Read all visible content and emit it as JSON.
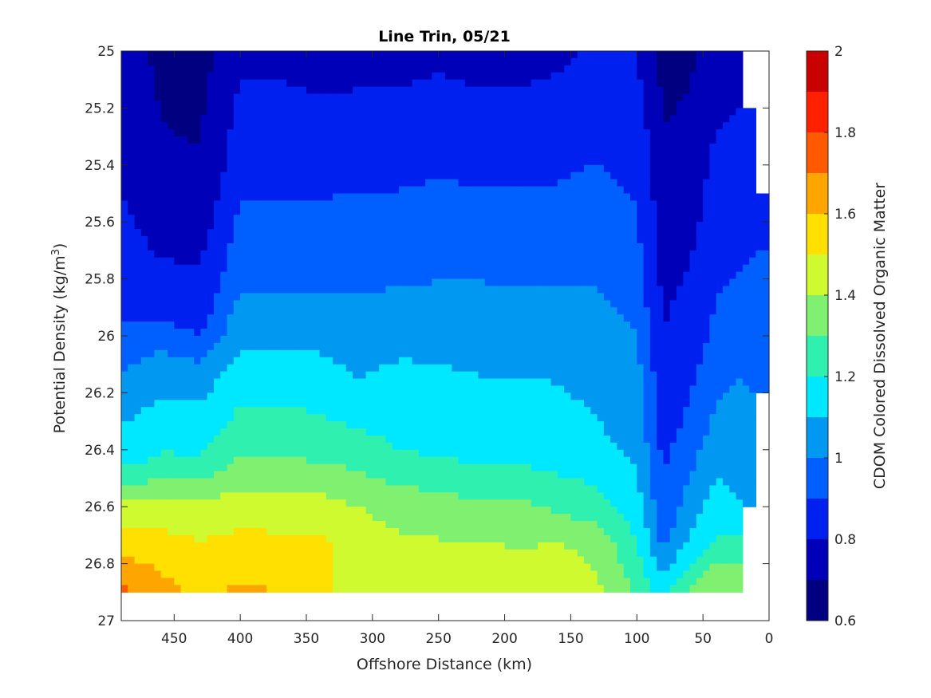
{
  "chart_data": {
    "type": "heatmap",
    "subtype": "filled-contour",
    "title": "Line Trin, 05/21",
    "xlabel": "Offshore Distance (km)",
    "ylabel": "Potential Density (kg/m",
    "ylabel_superscript": "3",
    "ylabel_close": ")",
    "colorbar_label": "CDOM Colored Dissolved Organic Matter",
    "x_axis": {
      "min": 0,
      "max": 490,
      "reversed": true,
      "ticks": [
        450,
        400,
        350,
        300,
        250,
        200,
        150,
        100,
        50,
        0
      ]
    },
    "y_axis": {
      "min": 25,
      "max": 27,
      "reversed": true,
      "ticks": [
        "25",
        "25.2",
        "25.4",
        "25.6",
        "25.8",
        "26",
        "26.2",
        "26.4",
        "26.6",
        "26.8",
        "27"
      ]
    },
    "colorbar": {
      "min": 0.6,
      "max": 2.0,
      "ticks": [
        "0.6",
        "0.8",
        "1",
        "1.2",
        "1.4",
        "1.6",
        "1.8",
        "2"
      ],
      "levels": [
        0.6,
        0.7,
        0.8,
        0.9,
        1.0,
        1.1,
        1.2,
        1.3,
        1.4,
        1.5,
        1.6,
        1.7,
        1.8,
        1.9,
        2.0
      ],
      "colors": [
        "#000080",
        "#0000B8",
        "#0020F0",
        "#0060FF",
        "#0098F0",
        "#00E8FF",
        "#30F0B0",
        "#80F070",
        "#D0FA30",
        "#FFE000",
        "#FFA500",
        "#FF5A00",
        "#FF2000",
        "#C80000"
      ]
    },
    "distances_km": [
      490,
      460,
      430,
      400,
      370,
      340,
      310,
      280,
      250,
      220,
      190,
      160,
      130,
      100,
      80,
      60,
      40,
      20,
      10
    ],
    "profiles": [
      [
        25.0,
        0.74,
        25.4,
        0.78,
        25.9,
        0.88,
        26.1,
        0.98,
        26.45,
        1.18,
        26.6,
        1.42,
        26.75,
        1.58,
        26.9,
        1.72
      ],
      [
        25.0,
        0.68,
        25.5,
        0.72,
        25.9,
        0.86,
        26.1,
        1.04,
        26.45,
        1.22,
        26.6,
        1.44,
        26.75,
        1.55,
        26.9,
        1.64
      ],
      [
        25.0,
        0.66,
        25.5,
        0.72,
        25.95,
        0.86,
        26.15,
        1.05,
        26.45,
        1.22,
        26.6,
        1.43,
        26.75,
        1.52,
        26.9,
        1.57
      ],
      [
        25.0,
        0.78,
        25.4,
        0.86,
        25.8,
        0.98,
        26.0,
        1.08,
        26.4,
        1.28,
        26.6,
        1.45,
        26.75,
        1.54,
        26.9,
        1.62
      ],
      [
        25.0,
        0.78,
        25.35,
        0.85,
        25.8,
        0.98,
        26.1,
        1.12,
        26.4,
        1.28,
        26.6,
        1.44,
        26.75,
        1.54,
        26.9,
        1.6
      ],
      [
        25.0,
        0.76,
        25.35,
        0.85,
        25.8,
        0.98,
        26.1,
        1.12,
        26.4,
        1.26,
        26.6,
        1.44,
        26.75,
        1.53,
        26.9,
        1.52
      ],
      [
        25.0,
        0.76,
        25.3,
        0.85,
        25.8,
        0.98,
        26.15,
        1.1,
        26.4,
        1.24,
        26.6,
        1.4,
        26.75,
        1.45,
        26.9,
        1.44
      ],
      [
        25.0,
        0.76,
        25.3,
        0.85,
        25.75,
        0.97,
        26.05,
        1.09,
        26.4,
        1.2,
        26.6,
        1.36,
        26.75,
        1.43,
        26.9,
        1.44
      ],
      [
        25.0,
        0.78,
        25.3,
        0.86,
        25.75,
        0.98,
        26.1,
        1.1,
        26.4,
        1.18,
        26.6,
        1.34,
        26.75,
        1.42,
        26.9,
        1.46
      ],
      [
        25.0,
        0.76,
        25.3,
        0.85,
        25.75,
        0.98,
        26.05,
        1.08,
        26.4,
        1.16,
        26.6,
        1.32,
        26.75,
        1.42,
        26.9,
        1.44
      ],
      [
        25.0,
        0.76,
        25.3,
        0.85,
        25.75,
        0.97,
        26.05,
        1.08,
        26.4,
        1.16,
        26.6,
        1.32,
        26.75,
        1.4,
        26.9,
        1.43
      ],
      [
        25.0,
        0.78,
        25.3,
        0.86,
        25.75,
        0.97,
        26.05,
        1.08,
        26.4,
        1.14,
        26.6,
        1.28,
        26.75,
        1.42,
        26.9,
        1.44
      ],
      [
        25.0,
        0.82,
        25.3,
        0.88,
        25.75,
        0.98,
        26.05,
        1.06,
        26.4,
        1.12,
        26.6,
        1.24,
        26.75,
        1.38,
        26.9,
        1.42
      ],
      [
        25.0,
        0.8,
        25.3,
        0.86,
        25.8,
        0.94,
        26.05,
        1.02,
        26.4,
        1.08,
        26.6,
        1.14,
        26.75,
        1.22,
        26.9,
        1.28
      ],
      [
        25.0,
        0.66,
        25.5,
        0.74,
        26.0,
        0.8,
        26.3,
        0.85,
        26.5,
        0.9,
        26.7,
        0.96,
        26.8,
        1.05,
        26.9,
        1.15
      ],
      [
        25.0,
        0.68,
        25.5,
        0.75,
        26.0,
        0.85,
        26.3,
        0.92,
        26.5,
        1.0,
        26.7,
        1.1,
        26.8,
        1.2,
        26.9,
        1.34
      ],
      [
        25.0,
        0.75,
        25.5,
        0.84,
        26.0,
        0.92,
        26.3,
        1.02,
        26.5,
        1.1,
        26.7,
        1.2,
        26.8,
        1.3,
        26.9,
        1.4
      ],
      [
        25.2,
        0.8,
        25.6,
        0.86,
        26.0,
        0.95,
        26.2,
        1.02,
        26.6,
        1.1
      ],
      [
        25.5,
        0.86,
        25.8,
        0.92,
        26.2,
        0.98
      ]
    ],
    "data_extent": {
      "top": 25.0,
      "bottom": 26.9
    }
  }
}
